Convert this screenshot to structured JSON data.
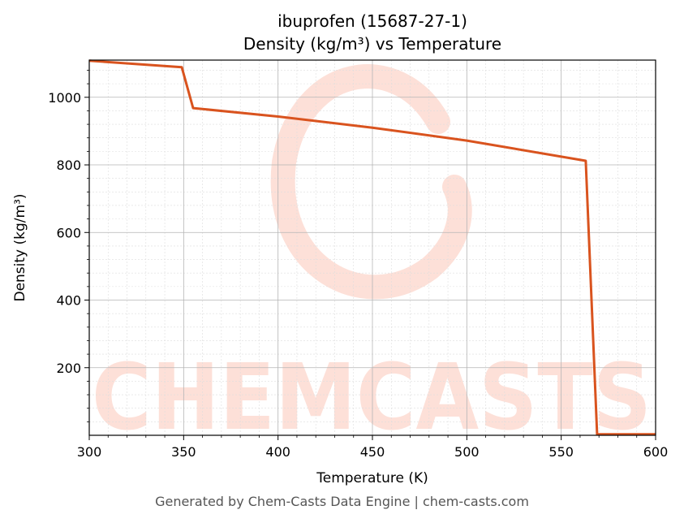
{
  "chart_data": {
    "type": "line",
    "title_line1": "ibuprofen (15687-27-1)",
    "title_line2": "Density (kg/m³) vs Temperature",
    "xlabel": "Temperature (K)",
    "ylabel": "Density (kg/m³)",
    "xlim": [
      300,
      600
    ],
    "ylim": [
      0,
      1110
    ],
    "xticks": [
      "300",
      "350",
      "400",
      "450",
      "500",
      "550",
      "600"
    ],
    "yticks": [
      "200",
      "400",
      "600",
      "800",
      "1000"
    ],
    "grid": true,
    "series": [
      {
        "color": "#d9531e",
        "x": [
          300,
          349,
          355,
          400,
          450,
          500,
          563,
          569,
          600
        ],
        "y": [
          1108,
          1089,
          968,
          943,
          910,
          872,
          812,
          3,
          3
        ]
      }
    ]
  },
  "watermark": {
    "text": "CHEMCASTS",
    "color": "#fde0d8"
  },
  "footer": "Generated by Chem-Casts Data Engine | chem-casts.com"
}
